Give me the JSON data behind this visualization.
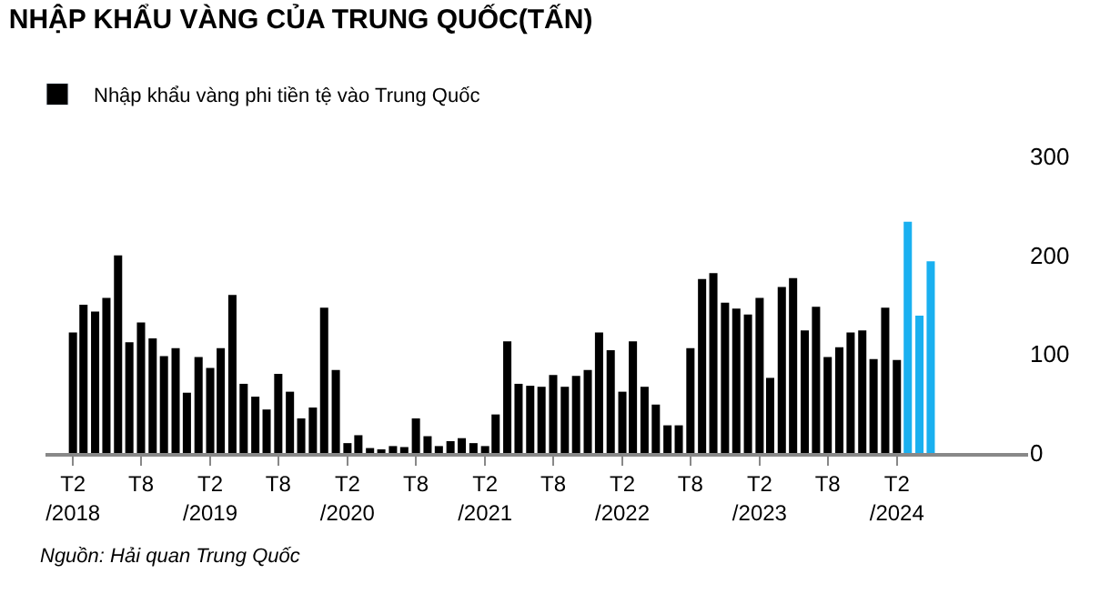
{
  "chart_data": {
    "type": "bar",
    "title": "NHẬP KHẨU VÀNG CỦA TRUNG QUỐC(TẤN)",
    "x": [
      "2018-02",
      "2018-03",
      "2018-04",
      "2018-05",
      "2018-06",
      "2018-07",
      "2018-08",
      "2018-09",
      "2018-10",
      "2018-11",
      "2018-12",
      "2019-01",
      "2019-02",
      "2019-03",
      "2019-04",
      "2019-05",
      "2019-06",
      "2019-07",
      "2019-08",
      "2019-09",
      "2019-10",
      "2019-11",
      "2019-12",
      "2020-01",
      "2020-02",
      "2020-03",
      "2020-04",
      "2020-05",
      "2020-06",
      "2020-07",
      "2020-08",
      "2020-09",
      "2020-10",
      "2020-11",
      "2020-12",
      "2021-01",
      "2021-02",
      "2021-03",
      "2021-04",
      "2021-05",
      "2021-06",
      "2021-07",
      "2021-08",
      "2021-09",
      "2021-10",
      "2021-11",
      "2021-12",
      "2022-01",
      "2022-02",
      "2022-03",
      "2022-04",
      "2022-05",
      "2022-06",
      "2022-07",
      "2022-08",
      "2022-09",
      "2022-10",
      "2022-11",
      "2022-12",
      "2023-01",
      "2023-02",
      "2023-03",
      "2023-04",
      "2023-05",
      "2023-06",
      "2023-07",
      "2023-08",
      "2023-09",
      "2023-10",
      "2023-11",
      "2023-12",
      "2024-01",
      "2024-02",
      "2024-03",
      "2024-04",
      "2024-05"
    ],
    "series": [
      {
        "name": "Nhập khẩu vàng phi tiền tệ vào Trung Quốc",
        "color": "#000000",
        "values": [
          122,
          150,
          143,
          157,
          200,
          112,
          132,
          116,
          98,
          106,
          61,
          97,
          86,
          106,
          160,
          70,
          57,
          44,
          80,
          62,
          35,
          46,
          147,
          84,
          10,
          18,
          5,
          3,
          7,
          6,
          35,
          17,
          7,
          12,
          15,
          10,
          7,
          39,
          113,
          70,
          68,
          67,
          79,
          67,
          78,
          84,
          122,
          104,
          62,
          113,
          67,
          49,
          28,
          28,
          106,
          176,
          182,
          152,
          146,
          140,
          157,
          76,
          168,
          177,
          124,
          148,
          97,
          107,
          122,
          124,
          95,
          147,
          94,
          234,
          139,
          194
        ],
        "colors": [
          "#000000",
          "#000000",
          "#000000",
          "#000000",
          "#000000",
          "#000000",
          "#000000",
          "#000000",
          "#000000",
          "#000000",
          "#000000",
          "#000000",
          "#000000",
          "#000000",
          "#000000",
          "#000000",
          "#000000",
          "#000000",
          "#000000",
          "#000000",
          "#000000",
          "#000000",
          "#000000",
          "#000000",
          "#000000",
          "#000000",
          "#000000",
          "#000000",
          "#000000",
          "#000000",
          "#000000",
          "#000000",
          "#000000",
          "#000000",
          "#000000",
          "#000000",
          "#000000",
          "#000000",
          "#000000",
          "#000000",
          "#000000",
          "#000000",
          "#000000",
          "#000000",
          "#000000",
          "#000000",
          "#000000",
          "#000000",
          "#000000",
          "#000000",
          "#000000",
          "#000000",
          "#000000",
          "#000000",
          "#000000",
          "#000000",
          "#000000",
          "#000000",
          "#000000",
          "#000000",
          "#000000",
          "#000000",
          "#000000",
          "#000000",
          "#000000",
          "#000000",
          "#000000",
          "#000000",
          "#000000",
          "#000000",
          "#000000",
          "#000000",
          "#000000",
          "#1ab0f0",
          "#1ab0f0",
          "#1ab0f0"
        ]
      }
    ],
    "xlim": [
      "2017-11-20",
      "2025-01-15"
    ],
    "xticks": [
      {
        "value": "2018-02",
        "label": "T2\n/2018"
      },
      {
        "value": "2018-08",
        "label": "T8"
      },
      {
        "value": "2019-02",
        "label": "T2\n/2019"
      },
      {
        "value": "2019-08",
        "label": "T8"
      },
      {
        "value": "2020-02",
        "label": "T2\n/2020"
      },
      {
        "value": "2020-08",
        "label": "T8"
      },
      {
        "value": "2021-02",
        "label": "T2\n/2021"
      },
      {
        "value": "2021-08",
        "label": "T8"
      },
      {
        "value": "2022-02",
        "label": "T2\n/2022"
      },
      {
        "value": "2022-08",
        "label": "T8"
      },
      {
        "value": "2023-02",
        "label": "T2\n/2023"
      },
      {
        "value": "2023-08",
        "label": "T8"
      },
      {
        "value": "2024-02",
        "label": "T2\n/2024"
      }
    ],
    "ylim": [
      0,
      300
    ],
    "yticks": [
      0,
      100,
      200,
      300
    ],
    "grid": false,
    "legend": "top left",
    "annotations": [
      "Nguồn: Hải quan Trung Quốc"
    ]
  }
}
